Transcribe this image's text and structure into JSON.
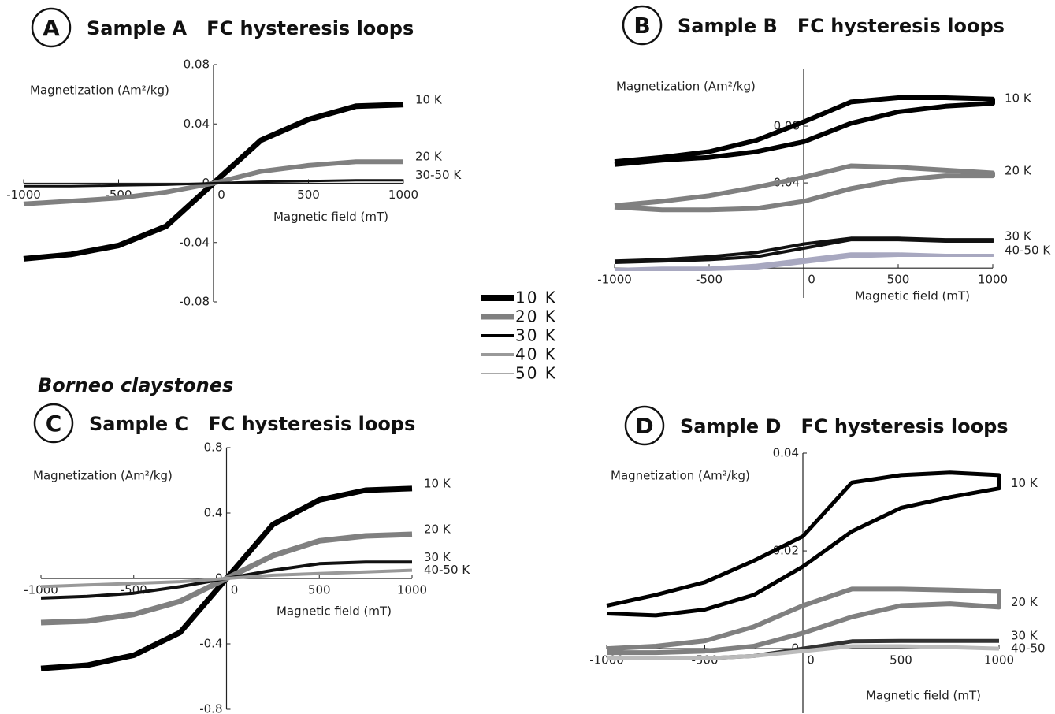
{
  "chart_data": [
    {
      "type": "line",
      "panel": "A",
      "title": "Sample A   FC hysteresis loops",
      "ylabel": "Magnetization (Am²/kg)",
      "xlabel": "Magnetic field (mT)",
      "xlim": [
        -1000,
        1000
      ],
      "ylim": [
        -0.08,
        0.08
      ],
      "xticks": [
        -1000,
        -500,
        0,
        500,
        1000
      ],
      "yticks": [
        -0.08,
        -0.04,
        0,
        0.04,
        0.08
      ],
      "series": [
        {
          "name": "10 K",
          "color": "#000000",
          "width": 7,
          "x": [
            -1000,
            -750,
            -500,
            -250,
            0,
            250,
            500,
            750,
            1000
          ],
          "values": [
            -0.051,
            -0.048,
            -0.042,
            -0.029,
            0,
            0.029,
            0.043,
            0.052,
            0.053
          ]
        },
        {
          "name": "20 K",
          "color": "#808080",
          "width": 6,
          "x": [
            -1000,
            -750,
            -500,
            -250,
            0,
            250,
            500,
            750,
            1000
          ],
          "values": [
            -0.014,
            -0.012,
            -0.01,
            -0.006,
            0,
            0.008,
            0.012,
            0.0145,
            0.0145
          ]
        },
        {
          "name": "30-50 K",
          "color": "#111111",
          "width": 3,
          "x": [
            -1000,
            -750,
            -500,
            -250,
            0,
            250,
            500,
            750,
            1000
          ],
          "values": [
            -0.002,
            -0.002,
            -0.0015,
            -0.001,
            0,
            0.001,
            0.0015,
            0.002,
            0.002
          ]
        }
      ]
    },
    {
      "type": "line",
      "panel": "B",
      "title": "Sample B   FC hysteresis loops",
      "ylabel": "Magnetization (Am²/kg)",
      "xlabel": "Magnetic field (mT)",
      "xlim": [
        -1000,
        1000
      ],
      "ylim": [
        -0.041,
        0.12
      ],
      "x_axis_at": -0.02,
      "xticks": [
        -1000,
        -500,
        0,
        500,
        1000
      ],
      "yticks": [
        0.04,
        0.08
      ],
      "series": [
        {
          "name": "10 K",
          "color": "#000000",
          "width": 6,
          "x": [
            -1000,
            -750,
            -500,
            -250,
            0,
            250,
            500,
            750,
            1000,
            1000,
            750,
            500,
            250,
            0,
            -250,
            -500,
            -750,
            -1000
          ],
          "values": [
            0.053,
            0.056,
            0.058,
            0.062,
            0.069,
            0.082,
            0.09,
            0.094,
            0.096,
            0.099,
            0.1,
            0.1,
            0.097,
            0.083,
            0.07,
            0.062,
            0.058,
            0.055
          ]
        },
        {
          "name": "20 K",
          "color": "#808080",
          "width": 6,
          "x": [
            -1000,
            -750,
            -500,
            -250,
            0,
            250,
            500,
            750,
            1000,
            1000,
            750,
            500,
            250,
            0,
            -250,
            -500,
            -750,
            -1000
          ],
          "values": [
            0.023,
            0.021,
            0.021,
            0.022,
            0.027,
            0.036,
            0.042,
            0.045,
            0.045,
            0.047,
            0.049,
            0.051,
            0.052,
            0.044,
            0.037,
            0.031,
            0.027,
            0.024
          ]
        },
        {
          "name": "30 K",
          "color": "#111111",
          "width": 4,
          "x": [
            -1000,
            -750,
            -500,
            -250,
            0,
            250,
            500,
            750,
            1000,
            1000,
            750,
            500,
            250,
            0,
            -250,
            -500,
            -750,
            -1000
          ],
          "values": [
            -0.016,
            -0.015,
            -0.014,
            -0.012,
            -0.006,
            0.0,
            0.0,
            -0.001,
            -0.001,
            0.0,
            0.0,
            0.001,
            0.001,
            -0.003,
            -0.009,
            -0.012,
            -0.014,
            -0.015
          ]
        },
        {
          "name": "40-50 K",
          "color": "#a8a8c0",
          "width": 4,
          "x": [
            -1000,
            -750,
            -500,
            -250,
            0,
            250,
            500,
            750,
            1000,
            1000,
            750,
            500,
            250,
            0,
            -250,
            -500,
            -750,
            -1000
          ],
          "values": [
            -0.021,
            -0.021,
            -0.021,
            -0.02,
            -0.016,
            -0.012,
            -0.011,
            -0.011,
            -0.011,
            -0.011,
            -0.011,
            -0.01,
            -0.01,
            -0.014,
            -0.018,
            -0.02,
            -0.02,
            -0.021
          ]
        }
      ]
    },
    {
      "type": "line",
      "panel": "C",
      "title": "Sample C   FC hysteresis loops",
      "ylabel": "Magnetization (Am²/kg)",
      "xlabel": "Magnetic field (mT)",
      "xlim": [
        -1000,
        1000
      ],
      "ylim": [
        -0.8,
        0.8
      ],
      "xticks": [
        -1000,
        -500,
        0,
        500,
        1000
      ],
      "yticks": [
        -0.8,
        -0.4,
        0,
        0.4,
        0.8
      ],
      "series": [
        {
          "name": "10 K",
          "color": "#000000",
          "width": 7,
          "x": [
            -1000,
            -750,
            -500,
            -250,
            0,
            250,
            500,
            750,
            1000
          ],
          "values": [
            -0.55,
            -0.53,
            -0.47,
            -0.33,
            0,
            0.33,
            0.48,
            0.54,
            0.55
          ]
        },
        {
          "name": "20 K",
          "color": "#808080",
          "width": 7,
          "x": [
            -1000,
            -750,
            -500,
            -250,
            0,
            250,
            500,
            750,
            1000
          ],
          "values": [
            -0.27,
            -0.26,
            -0.22,
            -0.14,
            0,
            0.14,
            0.23,
            0.26,
            0.27
          ]
        },
        {
          "name": "30 K",
          "color": "#111111",
          "width": 4,
          "x": [
            -1000,
            -750,
            -500,
            -250,
            0,
            250,
            500,
            750,
            1000
          ],
          "values": [
            -0.12,
            -0.11,
            -0.09,
            -0.05,
            0,
            0.05,
            0.09,
            0.1,
            0.1
          ]
        },
        {
          "name": "40-50 K",
          "color": "#999999",
          "width": 4,
          "x": [
            -1000,
            -750,
            -500,
            -250,
            0,
            250,
            500,
            750,
            1000
          ],
          "values": [
            -0.05,
            -0.04,
            -0.03,
            -0.02,
            0,
            0.02,
            0.03,
            0.04,
            0.05
          ]
        }
      ]
    },
    {
      "type": "line",
      "panel": "D",
      "title": "Sample D   FC hysteresis loops",
      "ylabel": "Magnetization (Am²/kg)",
      "xlabel": "Magnetic field (mT)",
      "xlim": [
        -1000,
        1000
      ],
      "ylim": [
        -0.0132,
        0.04
      ],
      "xticks": [
        -1000,
        -500,
        0,
        500,
        1000
      ],
      "yticks": [
        0,
        0.02,
        0.04
      ],
      "series": [
        {
          "name": "10 K",
          "color": "#000000",
          "width": 5,
          "x": [
            -1000,
            -750,
            -500,
            -250,
            0,
            250,
            500,
            750,
            1000,
            1000,
            750,
            500,
            250,
            0,
            -250,
            -500,
            -750,
            -1000
          ],
          "values": [
            0.0072,
            0.0068,
            0.008,
            0.011,
            0.0168,
            0.024,
            0.0288,
            0.031,
            0.0328,
            0.0355,
            0.036,
            0.0355,
            0.034,
            0.023,
            0.018,
            0.0136,
            0.011,
            0.0088
          ]
        },
        {
          "name": "20 K",
          "color": "#808080",
          "width": 6,
          "x": [
            -1000,
            -750,
            -500,
            -250,
            0,
            250,
            500,
            750,
            1000,
            1000,
            750,
            500,
            250,
            0,
            -250,
            -500,
            -750,
            -1000
          ],
          "values": [
            -0.0008,
            -0.0008,
            -0.0005,
            0.0005,
            0.0032,
            0.0065,
            0.0088,
            0.0092,
            0.0085,
            0.0117,
            0.012,
            0.0122,
            0.0122,
            0.0088,
            0.0045,
            0.0016,
            0.0005,
            0.0
          ]
        },
        {
          "name": "30 K",
          "color": "#333333",
          "width": 5,
          "x": [
            -1000,
            -750,
            -500,
            -250,
            0,
            250,
            500,
            750,
            1000
          ],
          "values": [
            -0.002,
            -0.002,
            -0.002,
            -0.0015,
            0.0,
            0.0015,
            0.0016,
            0.0016,
            0.0016
          ]
        },
        {
          "name": "40-50",
          "color": "#bbbbbb",
          "width": 5,
          "x": [
            -1000,
            -750,
            -500,
            -250,
            0,
            250,
            500,
            750,
            1000
          ],
          "values": [
            -0.002,
            -0.002,
            -0.002,
            -0.0015,
            -0.0005,
            0.0005,
            0.0005,
            0.0003,
            0.0
          ]
        }
      ]
    }
  ],
  "legend": {
    "entries": [
      {
        "label": "10 K",
        "color": "#000000",
        "width": 8
      },
      {
        "label": "20 K",
        "color": "#808080",
        "width": 7
      },
      {
        "label": "30 K",
        "color": "#000000",
        "width": 4
      },
      {
        "label": "40 K",
        "color": "#999999",
        "width": 4
      },
      {
        "label": "50 K",
        "color": "#aaaaaa",
        "width": 2
      }
    ]
  },
  "caption": "Borneo claystones"
}
